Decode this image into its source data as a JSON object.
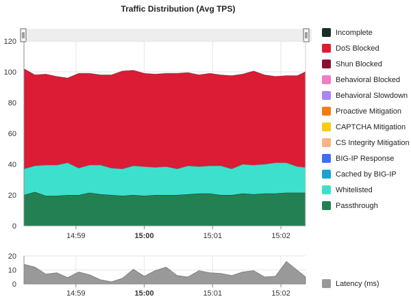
{
  "title": "Traffic Distribution (Avg TPS)",
  "colors": {
    "gridline": "#e6e6e6",
    "axis": "#888888",
    "navigator": "#eeeeee",
    "latency": "#999999"
  },
  "legend": [
    {
      "label": "Incomplete",
      "color": "#17302a"
    },
    {
      "label": "DoS Blocked",
      "color": "#dc1c35"
    },
    {
      "label": "Shun Blocked",
      "color": "#8b0f35"
    },
    {
      "label": "Behavioral Blocked",
      "color": "#f07cc6"
    },
    {
      "label": "Behavioral Slowdown",
      "color": "#aa88f0"
    },
    {
      "label": "Proactive Mitigation",
      "color": "#f57c12"
    },
    {
      "label": "CAPTCHA Mitigation",
      "color": "#f7cc13"
    },
    {
      "label": "CS Integrity Mitigation",
      "color": "#f7b487"
    },
    {
      "label": "BIG-IP Response",
      "color": "#3f6ef2"
    },
    {
      "label": "Cached by BIG-IP",
      "color": "#1ca2cf"
    },
    {
      "label": "Whitelisted",
      "color": "#3de0cc"
    },
    {
      "label": "Passthrough",
      "color": "#238052"
    }
  ],
  "latency_legend": {
    "label": "Latency (ms)",
    "color": "#999999"
  },
  "chart_data": [
    {
      "type": "area",
      "stacked": true,
      "title": "Traffic Distribution (Avg TPS)",
      "x_ticks": [
        {
          "label": "14:59",
          "bold": false,
          "x": 3.8
        },
        {
          "label": "15:00",
          "bold": true,
          "x": 8.8
        },
        {
          "label": "15:01",
          "bold": false,
          "x": 13.8
        },
        {
          "label": "15:02",
          "bold": false,
          "x": 18.8
        }
      ],
      "xlim": [
        0,
        20.6
      ],
      "ylim": [
        0,
        120
      ],
      "y_ticks": [
        0,
        20,
        40,
        60,
        80,
        100,
        120
      ],
      "grid": true,
      "x": [
        0,
        0.8,
        1.6,
        2.4,
        3.2,
        4.0,
        4.8,
        5.6,
        6.4,
        7.2,
        8.0,
        8.8,
        9.6,
        10.4,
        11.2,
        12.0,
        12.8,
        13.6,
        14.4,
        15.2,
        16.0,
        16.8,
        17.6,
        18.4,
        19.2,
        20.0,
        20.6
      ],
      "series": [
        {
          "name": "Passthrough",
          "color": "#238052",
          "values": [
            20,
            22,
            19.5,
            19.5,
            20,
            20,
            21.5,
            20.5,
            20,
            19.5,
            20,
            19.5,
            20,
            20,
            20,
            20.5,
            21,
            21,
            20,
            20,
            21,
            20.5,
            21,
            21,
            21.5,
            21.5,
            21.5
          ]
        },
        {
          "name": "Cached by BIG-IP",
          "color": "#1ca2cf",
          "values": [
            0,
            0,
            0,
            0,
            0,
            0,
            0,
            0,
            0,
            0,
            0,
            0,
            0,
            0,
            0,
            0,
            0,
            0,
            0,
            0,
            0,
            0,
            0,
            0,
            0,
            0,
            0
          ]
        },
        {
          "name": "Whitelisted",
          "color": "#3de0cc",
          "values": [
            17,
            17,
            20,
            20,
            21,
            17.5,
            18,
            19,
            17.5,
            17.5,
            19,
            19,
            18,
            18.5,
            17,
            18.5,
            17.5,
            18,
            19,
            17,
            19,
            19,
            19,
            20,
            19.5,
            17,
            16.5
          ]
        },
        {
          "name": "DoS Blocked",
          "color": "#dc1c35",
          "values": [
            65,
            59,
            59,
            57.5,
            55,
            61.5,
            59.5,
            58.5,
            60.5,
            63.5,
            62,
            60.5,
            60.5,
            60.5,
            62,
            60.5,
            59.5,
            60,
            59,
            60.5,
            58.5,
            61,
            58,
            56,
            56.5,
            59,
            62
          ]
        }
      ]
    },
    {
      "type": "area",
      "title": "",
      "series": [
        {
          "name": "Latency (ms)",
          "color": "#999999",
          "values": [
            14,
            12,
            7,
            8,
            4.5,
            8.5,
            6.5,
            3,
            1.5,
            4,
            10.5,
            5.5,
            9.5,
            12,
            6,
            5,
            9.5,
            8,
            7.5,
            6,
            8.5,
            9.5,
            5,
            5.5,
            16,
            5
          ]
        }
      ],
      "x": [
        0,
        0.8,
        1.6,
        2.4,
        3.2,
        4.0,
        4.8,
        5.6,
        6.4,
        7.2,
        8.0,
        8.8,
        9.6,
        10.4,
        11.2,
        12.0,
        12.8,
        13.6,
        14.4,
        15.2,
        16.0,
        16.8,
        17.6,
        18.4,
        19.2,
        20.6
      ],
      "xlim": [
        0,
        20.6
      ],
      "ylim": [
        0,
        20
      ],
      "y_ticks": [
        0,
        10,
        20
      ],
      "grid": true
    }
  ]
}
